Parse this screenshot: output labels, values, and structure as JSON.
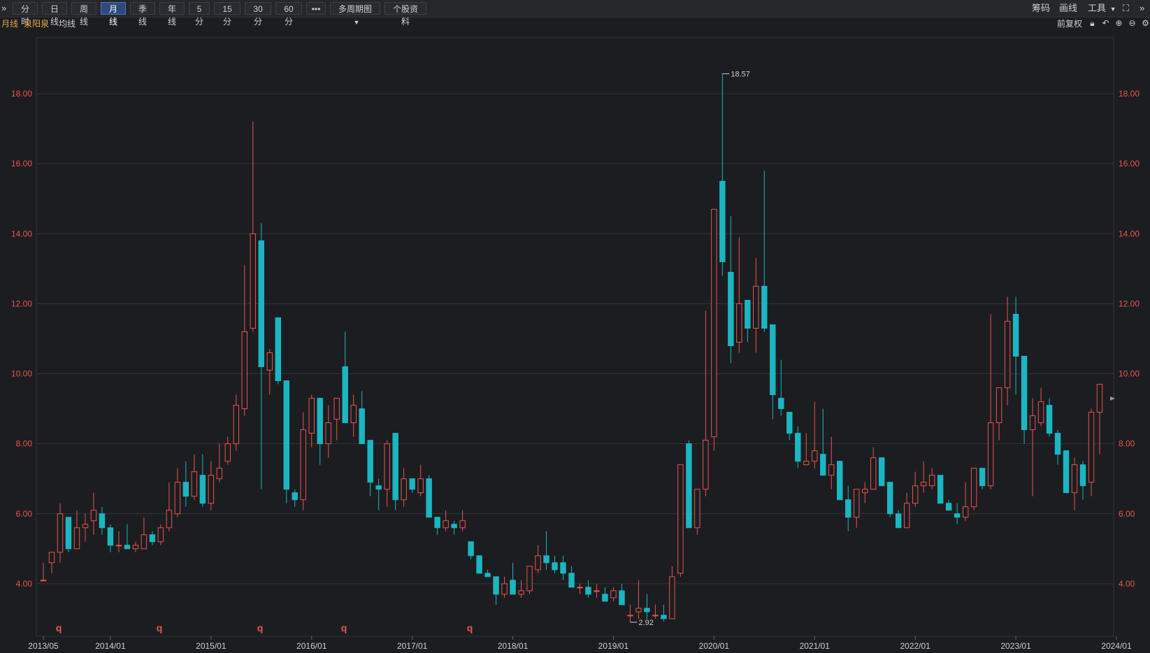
{
  "toolbar": {
    "collapse_icon": "double-chevron-right",
    "periods": [
      {
        "label": "分时",
        "active": false
      },
      {
        "label": "日线",
        "active": false
      },
      {
        "label": "周线",
        "active": false
      },
      {
        "label": "月线",
        "active": true
      },
      {
        "label": "季线",
        "active": false
      },
      {
        "label": "年线",
        "active": false
      },
      {
        "label": "5分",
        "active": false
      },
      {
        "label": "15分",
        "active": false
      },
      {
        "label": "30分",
        "active": false
      },
      {
        "label": "60分",
        "active": false
      }
    ],
    "more_label": "•••",
    "multi_period_label": "多周期图",
    "stock_info_label": "个股资料",
    "right": {
      "chip_label": "筹码",
      "draw_label": "画线",
      "tools_label": "工具"
    }
  },
  "subbar": {
    "period_label": "月线",
    "stock_name": "泉阳泉",
    "ma_label": "均线",
    "adjust_label": "前复权",
    "icons": [
      "lock-icon",
      "undo-icon",
      "zoom-in-icon",
      "zoom-out-icon",
      "gear-icon"
    ]
  },
  "colors": {
    "up": "#e8554e",
    "down": "#1bb6c1",
    "axis_label": "#e8554e",
    "grid": "#2c2d31",
    "background": "#1c1d21"
  },
  "chart_data": {
    "type": "candlestick",
    "period": "monthly",
    "ylim": [
      2.5,
      19.6
    ],
    "y_ticks": [
      "4.00",
      "6.00",
      "8.00",
      "10.00",
      "12.00",
      "14.00",
      "16.00",
      "18.00"
    ],
    "x_ticks": [
      "2013/05",
      "2014/01",
      "2015/01",
      "2016/01",
      "2017/01",
      "2018/01",
      "2019/01",
      "2020/01",
      "2021/01",
      "2022/01",
      "2023/01",
      "2024/01"
    ],
    "max_label": "18.57",
    "min_label": "2.92",
    "markers": [
      "q",
      "q",
      "q",
      "q",
      "q"
    ],
    "candles": [
      [
        4.1,
        4.6,
        4.1,
        4.1
      ],
      [
        4.6,
        4.9,
        4.3,
        4.9
      ],
      [
        4.9,
        6.3,
        4.6,
        6.0
      ],
      [
        5.9,
        5.9,
        4.9,
        5.0
      ],
      [
        5.0,
        6.1,
        5.0,
        5.6
      ],
      [
        5.6,
        6.0,
        5.2,
        5.7
      ],
      [
        5.8,
        6.6,
        5.4,
        6.1
      ],
      [
        6.0,
        6.2,
        5.4,
        5.6
      ],
      [
        5.6,
        5.7,
        4.9,
        5.1
      ],
      [
        5.1,
        5.5,
        4.9,
        5.1
      ],
      [
        5.1,
        5.7,
        5.0,
        5.0
      ],
      [
        5.0,
        5.2,
        4.9,
        5.1
      ],
      [
        5.0,
        5.9,
        5.0,
        5.4
      ],
      [
        5.4,
        5.5,
        5.1,
        5.2
      ],
      [
        5.2,
        5.7,
        5.1,
        5.6
      ],
      [
        5.6,
        6.9,
        5.5,
        6.1
      ],
      [
        6.0,
        7.3,
        5.9,
        6.9
      ],
      [
        6.9,
        7.5,
        6.2,
        6.5
      ],
      [
        6.5,
        7.7,
        6.4,
        7.2
      ],
      [
        7.1,
        7.7,
        6.2,
        6.3
      ],
      [
        6.3,
        7.5,
        6.1,
        7.1
      ],
      [
        7.0,
        8.0,
        6.9,
        7.3
      ],
      [
        7.5,
        8.2,
        7.4,
        8.0
      ],
      [
        8.0,
        9.4,
        7.8,
        9.1
      ],
      [
        9.0,
        13.1,
        8.8,
        11.2
      ],
      [
        11.3,
        17.2,
        11.2,
        14.0
      ],
      [
        13.8,
        14.3,
        6.7,
        10.2
      ],
      [
        10.1,
        10.7,
        9.4,
        10.6
      ],
      [
        11.6,
        11.6,
        9.7,
        9.8
      ],
      [
        9.8,
        9.8,
        6.3,
        6.7
      ],
      [
        6.6,
        6.7,
        6.2,
        6.4
      ],
      [
        6.4,
        8.9,
        6.1,
        8.4
      ],
      [
        8.3,
        9.4,
        7.9,
        9.3
      ],
      [
        9.3,
        9.3,
        7.4,
        8.0
      ],
      [
        8.0,
        9.1,
        7.6,
        8.6
      ],
      [
        8.7,
        9.3,
        8.1,
        9.3
      ],
      [
        10.2,
        11.2,
        8.6,
        8.6
      ],
      [
        8.6,
        9.4,
        8.2,
        9.1
      ],
      [
        9.0,
        9.5,
        8.0,
        8.0
      ],
      [
        8.1,
        8.1,
        6.5,
        6.9
      ],
      [
        6.8,
        7.0,
        6.1,
        6.7
      ],
      [
        6.7,
        8.1,
        6.2,
        8.0
      ],
      [
        8.3,
        8.3,
        6.1,
        6.4
      ],
      [
        6.4,
        7.3,
        6.2,
        7.0
      ],
      [
        7.0,
        7.0,
        6.6,
        6.7
      ],
      [
        6.6,
        7.4,
        6.5,
        7.0
      ],
      [
        7.0,
        7.1,
        5.9,
        5.9
      ],
      [
        5.9,
        5.9,
        5.4,
        5.6
      ],
      [
        5.6,
        6.1,
        5.5,
        5.8
      ],
      [
        5.7,
        5.8,
        5.4,
        5.6
      ],
      [
        5.6,
        6.1,
        5.5,
        5.8
      ],
      [
        5.2,
        5.2,
        4.7,
        4.8
      ],
      [
        4.8,
        4.8,
        4.3,
        4.3
      ],
      [
        4.3,
        4.4,
        4.2,
        4.2
      ],
      [
        4.2,
        4.2,
        3.4,
        3.7
      ],
      [
        3.7,
        4.2,
        3.6,
        4.0
      ],
      [
        4.1,
        4.6,
        3.7,
        3.7
      ],
      [
        3.7,
        4.1,
        3.6,
        3.8
      ],
      [
        3.8,
        4.5,
        3.7,
        4.5
      ],
      [
        4.4,
        5.1,
        4.3,
        4.8
      ],
      [
        4.8,
        5.5,
        4.4,
        4.6
      ],
      [
        4.6,
        4.8,
        4.3,
        4.4
      ],
      [
        4.6,
        4.8,
        4.1,
        4.3
      ],
      [
        4.3,
        4.5,
        3.9,
        3.9
      ],
      [
        3.9,
        4.0,
        3.7,
        3.9
      ],
      [
        3.9,
        4.1,
        3.6,
        3.7
      ],
      [
        3.8,
        4.0,
        3.6,
        3.8
      ],
      [
        3.7,
        3.9,
        3.5,
        3.5
      ],
      [
        3.6,
        3.9,
        3.5,
        3.8
      ],
      [
        3.8,
        4.0,
        3.4,
        3.4
      ],
      [
        3.1,
        3.4,
        2.9,
        3.1
      ],
      [
        3.2,
        4.1,
        3.0,
        3.3
      ],
      [
        3.3,
        3.7,
        3.0,
        3.2
      ],
      [
        3.1,
        3.4,
        3.0,
        3.1
      ],
      [
        3.1,
        3.4,
        2.92,
        3.0
      ],
      [
        3.0,
        4.5,
        3.0,
        4.2
      ],
      [
        4.3,
        7.4,
        4.2,
        7.4
      ],
      [
        8.0,
        8.1,
        5.6,
        5.6
      ],
      [
        5.6,
        6.7,
        5.4,
        6.7
      ],
      [
        6.7,
        11.8,
        6.5,
        8.1
      ],
      [
        8.2,
        14.7,
        7.8,
        14.7
      ],
      [
        15.5,
        18.57,
        12.8,
        13.2
      ],
      [
        12.9,
        14.5,
        10.3,
        10.8
      ],
      [
        10.9,
        13.9,
        10.6,
        12.0
      ],
      [
        12.1,
        12.1,
        10.9,
        11.3
      ],
      [
        11.3,
        13.3,
        10.6,
        12.5
      ],
      [
        12.5,
        15.8,
        11.2,
        11.3
      ],
      [
        11.4,
        11.4,
        8.7,
        9.4
      ],
      [
        9.3,
        10.4,
        8.8,
        9.0
      ],
      [
        8.9,
        8.9,
        8.1,
        8.3
      ],
      [
        8.3,
        8.5,
        7.3,
        7.5
      ],
      [
        7.4,
        8.3,
        7.4,
        7.5
      ],
      [
        7.5,
        9.2,
        7.3,
        7.8
      ],
      [
        7.7,
        9.0,
        7.1,
        7.1
      ],
      [
        7.1,
        8.2,
        6.7,
        7.4
      ],
      [
        7.5,
        7.5,
        6.4,
        6.4
      ],
      [
        6.4,
        6.8,
        5.5,
        5.9
      ],
      [
        5.9,
        6.7,
        5.6,
        6.7
      ],
      [
        6.6,
        6.9,
        6.3,
        6.7
      ],
      [
        6.7,
        7.9,
        6.7,
        7.6
      ],
      [
        7.6,
        7.6,
        6.8,
        6.8
      ],
      [
        6.9,
        6.9,
        5.9,
        6.0
      ],
      [
        6.0,
        6.1,
        5.6,
        5.6
      ],
      [
        5.6,
        6.6,
        5.6,
        6.3
      ],
      [
        6.3,
        7.2,
        6.2,
        6.8
      ],
      [
        6.8,
        7.5,
        6.6,
        6.9
      ],
      [
        6.8,
        7.3,
        6.7,
        7.1
      ],
      [
        7.1,
        7.1,
        6.3,
        6.3
      ],
      [
        6.3,
        6.4,
        6.1,
        6.1
      ],
      [
        6.0,
        6.3,
        5.7,
        5.9
      ],
      [
        5.9,
        6.9,
        5.8,
        6.2
      ],
      [
        6.2,
        7.3,
        6.1,
        7.3
      ],
      [
        7.3,
        7.3,
        6.7,
        6.8
      ],
      [
        6.8,
        11.7,
        6.7,
        8.6
      ],
      [
        8.6,
        9.6,
        8.1,
        9.6
      ],
      [
        9.6,
        12.2,
        9.1,
        11.5
      ],
      [
        11.7,
        12.2,
        9.4,
        10.5
      ],
      [
        10.5,
        10.5,
        8.0,
        8.4
      ],
      [
        8.4,
        9.3,
        6.5,
        8.8
      ],
      [
        8.6,
        9.6,
        8.5,
        9.2
      ],
      [
        9.1,
        9.3,
        8.2,
        8.3
      ],
      [
        8.3,
        8.4,
        7.4,
        7.7
      ],
      [
        7.8,
        7.8,
        6.6,
        6.6
      ],
      [
        6.6,
        7.6,
        6.1,
        7.4
      ],
      [
        7.4,
        7.5,
        6.4,
        6.8
      ],
      [
        6.9,
        9.0,
        6.5,
        8.9
      ],
      [
        8.9,
        9.7,
        7.7,
        9.7
      ]
    ]
  }
}
